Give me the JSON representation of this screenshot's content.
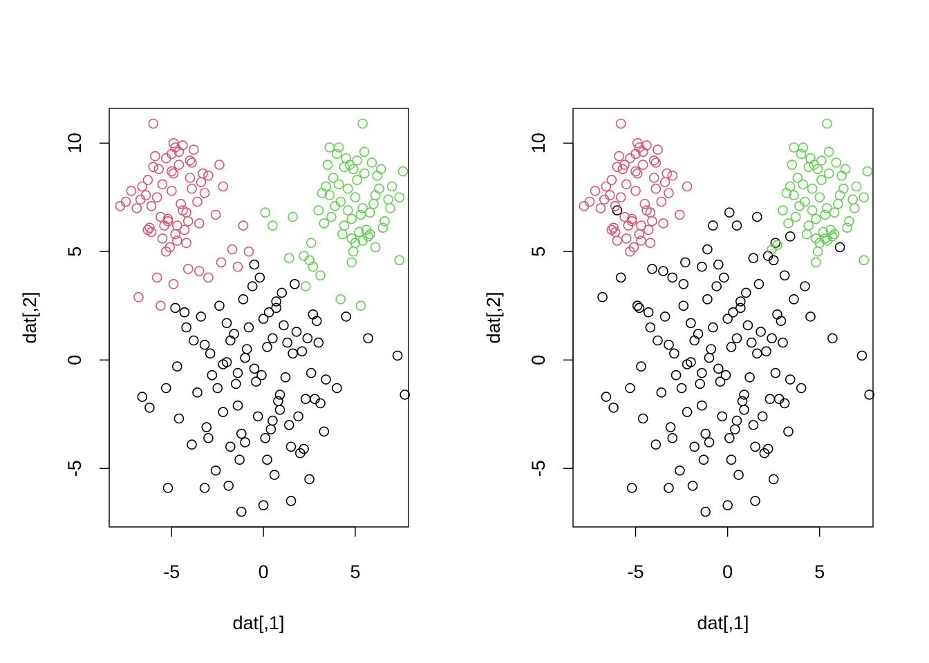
{
  "chart_data": [
    {
      "type": "scatter",
      "title": "",
      "xlabel": "dat[,1]",
      "ylabel": "dat[,2]",
      "xlim": [
        -8.4,
        7.9
      ],
      "ylim": [
        -7.7,
        11.6
      ],
      "xticks": [
        {
          "value": -5,
          "label": "-5"
        },
        {
          "value": 0,
          "label": "0"
        },
        {
          "value": 5,
          "label": "5"
        }
      ],
      "yticks": [
        {
          "value": -5,
          "label": "-5"
        },
        {
          "value": 0,
          "label": "0"
        },
        {
          "value": 5,
          "label": "5"
        },
        {
          "value": 10,
          "label": "10"
        }
      ],
      "grid": false,
      "legend": "none",
      "marker": "open-circle",
      "colors": {
        "group1": "#000000",
        "group2": "#DF536B",
        "group3": "#61D04F"
      },
      "series": [
        {
          "group": "group1",
          "x": [
            -1.0,
            0.2,
            1.6,
            0.5,
            -0.5,
            -1.8,
            1.2,
            -2.5,
            -0.8,
            0.9,
            2.1,
            -3.2,
            2.6,
            -1.4,
            0.0,
            1.8,
            -2.0,
            3.0,
            -0.3,
            0.7,
            -1.1,
            2.3,
            -2.8,
            0.4,
            1.0,
            -3.6,
            1.4,
            -0.6,
            3.4,
            -1.6,
            0.1,
            2.9,
            -2.2,
            -4.2,
            4.5,
            -0.2,
            1.5,
            -3.9,
            2.0,
            -1.3,
            -4.6,
            0.6,
            -5.2,
            -6.2,
            5.7,
            7.3,
            7.7,
            -6.6,
            -5.3,
            -4.7,
            -3.2,
            -1.2,
            0.0,
            1.5,
            2.5,
            3.3,
            -2.6,
            -1.8,
            -0.4,
            0.8,
            1.9,
            -3.4,
            -2.4,
            0.3,
            1.1,
            2.7,
            -1.5,
            -0.9,
            -0.1,
            1.3,
            -2.0,
            0.9,
            -2.9,
            3.1,
            -3.8,
            4.0,
            -0.5,
            1.7,
            -1.2,
            0.5,
            2.2,
            -3.0,
            -1.9,
            0.2,
            2.4,
            -4.8,
            -4.3,
            -2.2,
            2.8,
            -1.0,
            -1.4,
            -3.1,
            0.7
          ],
          "y": [
            0.1,
            0.6,
            0.3,
            1.0,
            -0.4,
            0.9,
            -0.8,
            -1.3,
            1.5,
            -1.6,
            0.4,
            0.7,
            -0.6,
            -2.1,
            1.9,
            1.3,
            -0.1,
            0.8,
            -2.6,
            2.4,
            2.8,
            -1.8,
            -0.7,
            -3.2,
            3.1,
            -1.5,
            -3.0,
            3.4,
            -0.9,
            1.2,
            -3.6,
            1.8,
            -2.4,
            1.5,
            2.0,
            3.8,
            -4.0,
            -3.9,
            -4.3,
            -4.6,
            -2.7,
            -5.3,
            -5.9,
            -2.2,
            1.0,
            0.2,
            -1.6,
            -1.7,
            -1.3,
            -0.3,
            -5.9,
            -7.0,
            -6.7,
            -6.5,
            -5.5,
            -3.3,
            -5.1,
            -4.0,
            -1.0,
            -1.9,
            -2.6,
            2.0,
            2.5,
            2.2,
            1.6,
            2.1,
            -1.1,
            0.5,
            -0.7,
            0.8,
            1.7,
            -2.3,
            0.3,
            -2.0,
            0.9,
            -1.3,
            4.4,
            3.5,
            -3.4,
            -2.8,
            -4.1,
            -3.6,
            -5.8,
            -4.6,
            1.0,
            2.4,
            2.2,
            -0.2,
            -1.8,
            -3.8,
            -0.6,
            -3.1,
            2.7
          ]
        },
        {
          "group": "group2",
          "x": [
            -5.0,
            -4.5,
            -5.5,
            -4.2,
            -5.8,
            -4.9,
            -5.2,
            -3.9,
            -6.1,
            -4.6,
            -5.4,
            -4.0,
            -6.4,
            -3.6,
            -5.0,
            -4.3,
            -5.7,
            -4.8,
            -3.4,
            -6.7,
            -5.3,
            -4.1,
            -6.0,
            -4.7,
            -3.8,
            -5.6,
            -4.4,
            -6.9,
            -3.2,
            -5.1,
            -4.9,
            -6.2,
            -4.0,
            -7.5,
            -3.0,
            -5.5,
            -4.6,
            -6.6,
            -3.5,
            -5.9,
            -4.2,
            -7.2,
            -2.6,
            -6.1,
            -5.0,
            -4.4,
            -3.9,
            -6.3,
            -5.3,
            -4.8,
            -2.2,
            -1.7,
            -1.1,
            -0.8,
            -1.4,
            -2.3,
            -3.0,
            -3.5,
            -5.8,
            -6.0,
            -6.8,
            -7.8,
            -4.7,
            -6.3,
            -2.4,
            -4.9,
            -5.6,
            -4.1,
            -3.3,
            -5.2
          ],
          "y": [
            7.8,
            7.2,
            8.1,
            6.8,
            7.5,
            8.6,
            6.5,
            7.9,
            7.1,
            9.0,
            6.2,
            8.4,
            7.6,
            7.3,
            9.5,
            6.0,
            8.8,
            5.8,
            8.2,
            7.4,
            9.3,
            6.4,
            8.9,
            5.5,
            9.7,
            6.6,
            9.9,
            7.0,
            7.7,
            5.2,
            10.0,
            6.1,
            9.2,
            7.3,
            8.5,
            5.6,
            9.6,
            8.0,
            6.3,
            9.4,
            5.4,
            7.8,
            6.7,
            5.9,
            8.7,
            6.9,
            9.1,
            8.3,
            5.0,
            9.8,
            8.0,
            5.1,
            6.2,
            5.0,
            4.3,
            4.5,
            3.8,
            4.1,
            3.8,
            10.9,
            2.9,
            7.1,
            6.2,
            6.0,
            9.0,
            3.5,
            2.5,
            4.2,
            8.6,
            6.4
          ]
        },
        {
          "group": "group3",
          "x": [
            5.0,
            5.4,
            4.6,
            5.8,
            4.2,
            5.1,
            4.8,
            6.1,
            3.9,
            5.5,
            4.4,
            6.3,
            3.6,
            5.2,
            4.9,
            6.6,
            4.1,
            5.7,
            3.4,
            6.0,
            4.7,
            5.3,
            3.8,
            6.8,
            4.5,
            5.6,
            3.2,
            7.0,
            4.3,
            5.9,
            3.7,
            6.4,
            4.0,
            7.4,
            5.0,
            5.5,
            4.6,
            6.2,
            3.3,
            5.1,
            4.8,
            7.6,
            3.0,
            6.9,
            4.1,
            5.8,
            4.4,
            6.5,
            3.5,
            5.4,
            0.1,
            0.5,
            1.4,
            2.2,
            2.5,
            2.6,
            3.1,
            2.7,
            1.6,
            4.8,
            5.4,
            6.1,
            7.4,
            5.3,
            4.9,
            3.6,
            4.2,
            2.3
          ],
          "y": [
            7.5,
            7.0,
            7.9,
            6.8,
            7.3,
            8.3,
            6.5,
            7.6,
            7.1,
            8.6,
            6.2,
            7.9,
            7.6,
            5.9,
            8.8,
            6.4,
            8.1,
            5.7,
            8.0,
            7.2,
            9.0,
            6.7,
            8.4,
            7.4,
            9.3,
            6.0,
            7.7,
            8.0,
            5.8,
            9.1,
            6.6,
            8.8,
            9.5,
            7.5,
            5.4,
            9.6,
            6.9,
            8.5,
            6.3,
            9.2,
            5.6,
            8.7,
            6.9,
            7.0,
            9.8,
            5.8,
            8.9,
            6.1,
            9.0,
            5.5,
            6.8,
            6.2,
            4.7,
            4.8,
            4.6,
            5.4,
            3.9,
            4.3,
            6.6,
            4.5,
            10.9,
            5.2,
            4.6,
            2.5,
            5.0,
            9.8,
            2.8,
            3.4
          ]
        }
      ]
    },
    {
      "type": "scatter",
      "title": "",
      "xlabel": "dat[,1]",
      "ylabel": "dat[,2]",
      "xlim": [
        -8.4,
        7.9
      ],
      "ylim": [
        -7.7,
        11.6
      ],
      "xticks": [
        {
          "value": -5,
          "label": "-5"
        },
        {
          "value": 0,
          "label": "0"
        },
        {
          "value": 5,
          "label": "5"
        }
      ],
      "yticks": [
        {
          "value": -5,
          "label": "-5"
        },
        {
          "value": 0,
          "label": "0"
        },
        {
          "value": 5,
          "label": "5"
        },
        {
          "value": 10,
          "label": "10"
        }
      ],
      "grid": false,
      "legend": "none",
      "marker": "open-circle",
      "colors": {
        "group1": "#000000",
        "group2": "#DF536B",
        "group3": "#61D04F"
      },
      "series": [
        {
          "group": "group1",
          "x": [
            -1.0,
            0.2,
            1.6,
            0.5,
            -0.5,
            -1.8,
            1.2,
            -2.5,
            -0.8,
            0.9,
            2.1,
            -3.2,
            2.6,
            -1.4,
            0.0,
            1.8,
            -2.0,
            3.0,
            -0.3,
            0.7,
            -1.1,
            2.3,
            -2.8,
            0.4,
            1.0,
            -3.6,
            1.4,
            -0.6,
            3.4,
            -1.6,
            0.1,
            2.9,
            -2.2,
            -4.2,
            4.5,
            -0.2,
            1.5,
            -3.9,
            2.0,
            -1.3,
            -4.6,
            0.6,
            -5.2,
            -6.2,
            5.7,
            7.3,
            7.7,
            -6.6,
            -5.3,
            -4.7,
            -3.2,
            -1.2,
            0.0,
            1.5,
            2.5,
            3.3,
            -2.6,
            -1.8,
            -0.4,
            0.8,
            1.9,
            -3.4,
            -2.4,
            0.3,
            1.1,
            2.7,
            -1.5,
            -0.9,
            -0.1,
            1.3,
            -2.0,
            0.9,
            -2.9,
            3.1,
            -3.8,
            4.0,
            -0.5,
            1.7,
            -1.2,
            0.5,
            2.2,
            -3.0,
            -1.9,
            0.2,
            2.4,
            -4.8,
            -4.3,
            -2.2,
            2.8,
            -1.0,
            -1.4,
            -3.1,
            0.7,
            -1.1,
            -0.8,
            -1.4,
            -2.3,
            -3.0,
            -3.5,
            -5.8,
            -6.0,
            -6.8,
            -2.4,
            -4.9,
            -4.1,
            0.1,
            0.5,
            1.4,
            2.2,
            2.5,
            2.6,
            3.1,
            1.6,
            6.1,
            3.4,
            4.2,
            3.6
          ],
          "y": [
            0.1,
            0.6,
            0.3,
            1.0,
            -0.4,
            0.9,
            -0.8,
            -1.3,
            1.5,
            -1.6,
            0.4,
            0.7,
            -0.6,
            -2.1,
            1.9,
            1.3,
            -0.1,
            0.8,
            -2.6,
            2.4,
            2.8,
            -1.8,
            -0.7,
            -3.2,
            3.1,
            -1.5,
            -3.0,
            3.4,
            -0.9,
            1.2,
            -3.6,
            1.8,
            -2.4,
            1.5,
            2.0,
            3.8,
            -4.0,
            -3.9,
            -4.3,
            -4.6,
            -2.7,
            -5.3,
            -5.9,
            -2.2,
            1.0,
            0.2,
            -1.6,
            -1.7,
            -1.3,
            -0.3,
            -5.9,
            -7.0,
            -6.7,
            -6.5,
            -5.5,
            -3.3,
            -5.1,
            -4.0,
            -1.0,
            -1.9,
            -2.6,
            2.0,
            2.5,
            2.2,
            1.6,
            2.1,
            -1.1,
            0.5,
            -0.7,
            0.8,
            1.7,
            -2.3,
            0.3,
            -2.0,
            0.9,
            -1.3,
            4.4,
            3.5,
            -3.4,
            -2.8,
            -4.1,
            -3.6,
            -5.8,
            -4.6,
            1.0,
            2.4,
            2.2,
            -0.2,
            -1.8,
            -3.8,
            -0.6,
            -3.1,
            2.7,
            5.1,
            6.2,
            4.3,
            4.5,
            3.8,
            4.1,
            3.8,
            6.9,
            2.9,
            3.5,
            2.5,
            4.2,
            6.8,
            6.2,
            4.7,
            4.8,
            4.6,
            5.4,
            3.9,
            6.6,
            5.2,
            5.7,
            3.4,
            2.8
          ]
        },
        {
          "group": "group2",
          "x": [
            -5.0,
            -4.5,
            -5.5,
            -4.2,
            -5.8,
            -4.9,
            -5.2,
            -3.9,
            -6.1,
            -4.6,
            -5.4,
            -4.0,
            -6.4,
            -3.6,
            -5.0,
            -4.3,
            -5.7,
            -4.8,
            -3.4,
            -6.7,
            -5.3,
            -4.1,
            -6.0,
            -4.7,
            -3.8,
            -5.6,
            -4.4,
            -6.9,
            -3.2,
            -5.1,
            -4.9,
            -6.2,
            -4.0,
            -7.5,
            -3.0,
            -5.5,
            -4.6,
            -6.6,
            -3.5,
            -5.9,
            -4.2,
            -7.2,
            -2.6,
            -6.1,
            -5.0,
            -4.4,
            -3.9,
            -6.3,
            -5.3,
            -4.8,
            -2.2,
            -5.8,
            -7.8,
            -4.7,
            -6.3,
            -5.6,
            -3.3,
            -5.2,
            -6.0
          ],
          "y": [
            7.8,
            7.2,
            8.1,
            6.8,
            7.5,
            8.6,
            6.5,
            7.9,
            7.1,
            9.0,
            6.2,
            8.4,
            7.6,
            7.3,
            9.5,
            6.0,
            8.8,
            5.8,
            8.2,
            7.4,
            9.3,
            6.4,
            8.9,
            5.5,
            9.7,
            6.6,
            9.9,
            7.0,
            7.7,
            5.2,
            10.0,
            6.1,
            9.2,
            7.3,
            8.5,
            5.6,
            9.6,
            8.0,
            6.3,
            9.4,
            5.4,
            7.8,
            6.7,
            5.9,
            8.7,
            6.9,
            9.1,
            8.3,
            5.0,
            9.8,
            8.0,
            10.9,
            7.1,
            6.2,
            6.0,
            9.0,
            8.6,
            6.4,
            5.5
          ]
        },
        {
          "group": "group3",
          "x": [
            5.0,
            5.4,
            4.6,
            5.8,
            4.2,
            5.1,
            4.8,
            6.1,
            3.9,
            5.5,
            4.4,
            6.3,
            3.6,
            5.2,
            4.9,
            6.6,
            4.1,
            5.7,
            3.4,
            6.0,
            4.7,
            5.3,
            3.8,
            6.8,
            4.5,
            5.6,
            3.2,
            7.0,
            4.3,
            5.9,
            3.7,
            6.4,
            4.0,
            7.4,
            5.0,
            5.5,
            4.6,
            6.2,
            3.3,
            5.1,
            4.8,
            7.6,
            3.0,
            6.9,
            4.1,
            5.8,
            4.4,
            6.5,
            3.5,
            5.4,
            4.8,
            5.4,
            7.4,
            5.3,
            4.9,
            3.6,
            2.7,
            2.4
          ],
          "y": [
            7.5,
            7.0,
            7.9,
            6.8,
            7.3,
            8.3,
            6.5,
            7.6,
            7.1,
            8.6,
            6.2,
            7.9,
            7.6,
            5.9,
            8.8,
            6.4,
            8.1,
            5.7,
            8.0,
            7.2,
            9.0,
            6.7,
            8.4,
            7.4,
            9.3,
            6.0,
            7.7,
            8.0,
            5.8,
            9.1,
            6.6,
            8.8,
            9.5,
            7.5,
            5.4,
            9.6,
            6.9,
            8.5,
            6.3,
            9.2,
            5.6,
            8.7,
            6.9,
            7.0,
            9.8,
            5.8,
            8.9,
            6.1,
            9.0,
            5.5,
            4.5,
            10.9,
            4.6,
            5.6,
            5.0,
            9.8,
            5.3,
            5.1
          ]
        }
      ]
    }
  ]
}
